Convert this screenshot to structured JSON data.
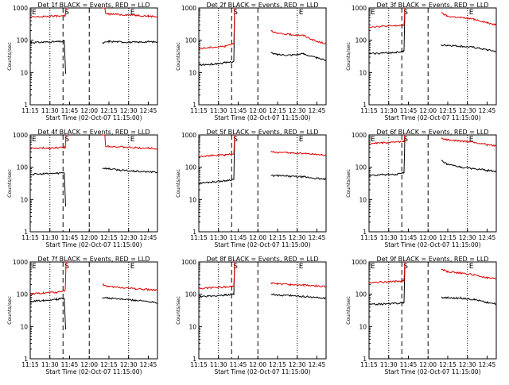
{
  "figure": {
    "time_label_prefix": "Start Time",
    "start_time": "02-Oct-07 11:15:00",
    "xlabel": "Start Time (02-Oct-07 11:15:00)",
    "ylabel": "Counts/sec"
  },
  "colors": {
    "events": "#000000",
    "lld": "#dd0000",
    "axes": "#000000"
  },
  "chart_data": [
    {
      "type": "line",
      "title": "Det 1f BLACK = Events, RED = LLD",
      "x_ticks": [
        "11:15",
        "11:30",
        "11:45",
        "12:00",
        "12:15",
        "12:30",
        "12:45"
      ],
      "y_ticks": [
        "1",
        "10",
        "100",
        "1000"
      ],
      "ylim": [
        1,
        1000
      ],
      "yscale": "log",
      "markers": {
        "start_left": "E",
        "S": "S",
        "E": "E"
      },
      "series": [
        {
          "name": "Events",
          "x_minutes": [
            0,
            10,
            20,
            26,
            27,
            30,
            40,
            48,
            55,
            60,
            70,
            80,
            90,
            97
          ],
          "values": [
            85,
            87,
            90,
            92,
            9,
            null,
            null,
            null,
            80,
            92,
            88,
            86,
            90,
            88
          ]
        },
        {
          "name": "LLD",
          "x_minutes": [
            0,
            10,
            20,
            26,
            28,
            30,
            40,
            48,
            55,
            60,
            70,
            80,
            90,
            97
          ],
          "values": [
            520,
            540,
            560,
            580,
            1000,
            null,
            null,
            null,
            1000,
            650,
            620,
            600,
            560,
            540
          ]
        }
      ]
    },
    {
      "type": "line",
      "title": "Det 2f BLACK = Events, RED = LLD",
      "x_ticks": [
        "11:15",
        "11:30",
        "11:45",
        "12:00",
        "12:15",
        "12:30",
        "12:45"
      ],
      "y_ticks": [
        "1",
        "10",
        "100",
        "1000"
      ],
      "ylim": [
        1,
        1000
      ],
      "yscale": "log",
      "markers": {
        "start_left": "",
        "S": "S",
        "E": "E"
      },
      "series": [
        {
          "name": "Events",
          "x_minutes": [
            0,
            10,
            20,
            26,
            28,
            30,
            40,
            48,
            55,
            60,
            70,
            80,
            90,
            97
          ],
          "values": [
            17,
            18,
            20,
            22,
            1000,
            null,
            null,
            null,
            40,
            36,
            35,
            38,
            28,
            24
          ]
        },
        {
          "name": "LLD",
          "x_minutes": [
            0,
            10,
            20,
            26,
            28,
            30,
            40,
            48,
            55,
            60,
            70,
            80,
            90,
            97
          ],
          "values": [
            55,
            60,
            65,
            80,
            1000,
            null,
            null,
            null,
            200,
            160,
            150,
            140,
            90,
            80
          ]
        }
      ]
    },
    {
      "type": "line",
      "title": "Det 3f BLACK = Events, RED = LLD",
      "x_ticks": [
        "11:15",
        "11:30",
        "11:45",
        "12:00",
        "12:15",
        "12:30",
        "12:45"
      ],
      "y_ticks": [
        "1",
        "10",
        "100",
        "1000"
      ],
      "ylim": [
        1,
        1000
      ],
      "yscale": "log",
      "markers": {
        "start_left": "E",
        "S": "S",
        "E": "E"
      },
      "series": [
        {
          "name": "Events",
          "x_minutes": [
            0,
            10,
            20,
            26,
            28,
            30,
            40,
            48,
            55,
            60,
            70,
            80,
            90,
            97
          ],
          "values": [
            38,
            40,
            42,
            45,
            1000,
            null,
            null,
            null,
            70,
            70,
            65,
            60,
            50,
            45
          ]
        },
        {
          "name": "LLD",
          "x_minutes": [
            0,
            10,
            20,
            26,
            28,
            30,
            40,
            48,
            55,
            60,
            70,
            80,
            90,
            97
          ],
          "values": [
            260,
            270,
            280,
            290,
            1000,
            null,
            null,
            null,
            700,
            550,
            500,
            450,
            350,
            300
          ]
        }
      ]
    },
    {
      "type": "line",
      "title": "Det 4f BLACK = Events, RED = LLD",
      "x_ticks": [
        "11:15",
        "11:30",
        "11:45",
        "12:00",
        "12:15",
        "12:30",
        "12:45"
      ],
      "y_ticks": [
        "1",
        "10",
        "100",
        "1000"
      ],
      "ylim": [
        1,
        1000
      ],
      "yscale": "log",
      "markers": {
        "start_left": "E",
        "S": "S",
        "E": "E"
      },
      "series": [
        {
          "name": "Events",
          "x_minutes": [
            0,
            10,
            20,
            26,
            27,
            30,
            40,
            48,
            55,
            60,
            70,
            80,
            90,
            97
          ],
          "values": [
            60,
            62,
            65,
            68,
            6,
            null,
            null,
            null,
            95,
            90,
            80,
            75,
            72,
            70
          ]
        },
        {
          "name": "LLD",
          "x_minutes": [
            0,
            10,
            20,
            26,
            28,
            30,
            40,
            48,
            55,
            60,
            70,
            80,
            90,
            97
          ],
          "values": [
            380,
            390,
            400,
            410,
            1000,
            null,
            null,
            null,
            1000,
            450,
            420,
            400,
            390,
            380
          ]
        }
      ]
    },
    {
      "type": "line",
      "title": "Det 5f BLACK = Events, RED = LLD",
      "x_ticks": [
        "11:15",
        "11:30",
        "11:45",
        "12:00",
        "12:15",
        "12:30",
        "12:45"
      ],
      "y_ticks": [
        "1",
        "10",
        "100",
        "1000"
      ],
      "ylim": [
        1,
        1000
      ],
      "yscale": "log",
      "markers": {
        "start_left": "",
        "S": "S",
        "E": "E"
      },
      "series": [
        {
          "name": "Events",
          "x_minutes": [
            0,
            10,
            20,
            26,
            28,
            30,
            40,
            48,
            55,
            60,
            70,
            80,
            90,
            97
          ],
          "values": [
            32,
            35,
            38,
            42,
            1000,
            null,
            null,
            null,
            55,
            55,
            52,
            50,
            45,
            42
          ]
        },
        {
          "name": "LLD",
          "x_minutes": [
            0,
            10,
            20,
            26,
            28,
            30,
            40,
            48,
            55,
            60,
            70,
            80,
            90,
            97
          ],
          "values": [
            220,
            230,
            240,
            260,
            1000,
            null,
            null,
            null,
            300,
            290,
            280,
            270,
            250,
            240
          ]
        }
      ]
    },
    {
      "type": "line",
      "title": "Det 6f BLACK = Events, RED = LLD",
      "x_ticks": [
        "11:15",
        "11:30",
        "11:45",
        "12:00",
        "12:15",
        "12:30",
        "12:45"
      ],
      "y_ticks": [
        "1",
        "10",
        "100",
        "1000"
      ],
      "ylim": [
        1,
        1000
      ],
      "yscale": "log",
      "markers": {
        "start_left": "E",
        "S": "S",
        "E": "E"
      },
      "series": [
        {
          "name": "Events",
          "x_minutes": [
            0,
            10,
            20,
            26,
            28,
            30,
            40,
            48,
            55,
            60,
            70,
            80,
            90,
            97
          ],
          "values": [
            55,
            58,
            60,
            65,
            1000,
            null,
            null,
            null,
            160,
            120,
            100,
            90,
            80,
            75
          ]
        },
        {
          "name": "LLD",
          "x_minutes": [
            0,
            10,
            20,
            26,
            28,
            30,
            40,
            48,
            55,
            60,
            70,
            80,
            90,
            97
          ],
          "values": [
            550,
            570,
            600,
            620,
            1000,
            null,
            null,
            null,
            800,
            700,
            650,
            600,
            500,
            470
          ]
        }
      ]
    },
    {
      "type": "line",
      "title": "Det 7f BLACK = Events, RED = LLD",
      "x_ticks": [
        "11:15",
        "11:30",
        "11:45",
        "12:00",
        "12:15",
        "12:30",
        "12:45"
      ],
      "y_ticks": [
        "1",
        "10",
        "100",
        "1000"
      ],
      "ylim": [
        1,
        1000
      ],
      "yscale": "log",
      "markers": {
        "start_left": "E",
        "S": "S",
        "E": "E"
      },
      "series": [
        {
          "name": "Events",
          "x_minutes": [
            0,
            10,
            20,
            26,
            27,
            30,
            40,
            48,
            55,
            60,
            70,
            80,
            90,
            97
          ],
          "values": [
            60,
            65,
            70,
            75,
            8,
            null,
            null,
            null,
            80,
            75,
            70,
            65,
            60,
            55
          ]
        },
        {
          "name": "LLD",
          "x_minutes": [
            0,
            10,
            20,
            26,
            28,
            30,
            40,
            48,
            55,
            60,
            70,
            80,
            90,
            97
          ],
          "values": [
            100,
            110,
            115,
            130,
            1000,
            null,
            null,
            null,
            200,
            170,
            160,
            150,
            140,
            130
          ]
        }
      ]
    },
    {
      "type": "line",
      "title": "Det 8f BLACK = Events, RED = LLD",
      "x_ticks": [
        "11:15",
        "11:30",
        "11:45",
        "12:00",
        "12:15",
        "12:30",
        "12:45"
      ],
      "y_ticks": [
        "1",
        "10",
        "100",
        "1000"
      ],
      "ylim": [
        1,
        1000
      ],
      "yscale": "log",
      "markers": {
        "start_left": "",
        "S": "S",
        "E": "E"
      },
      "series": [
        {
          "name": "Events",
          "x_minutes": [
            0,
            10,
            20,
            26,
            28,
            30,
            40,
            48,
            55,
            60,
            70,
            80,
            90,
            97
          ],
          "values": [
            85,
            88,
            95,
            100,
            1000,
            null,
            null,
            null,
            100,
            95,
            90,
            85,
            80,
            75
          ]
        },
        {
          "name": "LLD",
          "x_minutes": [
            0,
            10,
            20,
            26,
            28,
            30,
            40,
            48,
            55,
            60,
            70,
            80,
            90,
            97
          ],
          "values": [
            150,
            160,
            170,
            180,
            1000,
            null,
            null,
            null,
            220,
            210,
            200,
            190,
            180,
            170
          ]
        }
      ]
    },
    {
      "type": "line",
      "title": "Det 9f BLACK = Events, RED = LLD",
      "x_ticks": [
        "11:15",
        "11:30",
        "11:45",
        "12:00",
        "12:15",
        "12:30",
        "12:45"
      ],
      "y_ticks": [
        "1",
        "10",
        "100",
        "1000"
      ],
      "ylim": [
        1,
        1000
      ],
      "yscale": "log",
      "markers": {
        "start_left": "E",
        "S": "S",
        "E": "E"
      },
      "series": [
        {
          "name": "Events",
          "x_minutes": [
            0,
            10,
            20,
            26,
            28,
            30,
            40,
            48,
            55,
            60,
            70,
            80,
            90,
            97
          ],
          "values": [
            48,
            50,
            52,
            55,
            1000,
            null,
            null,
            null,
            80,
            78,
            75,
            70,
            55,
            50
          ]
        },
        {
          "name": "LLD",
          "x_minutes": [
            0,
            10,
            20,
            26,
            28,
            30,
            40,
            48,
            55,
            60,
            70,
            80,
            90,
            97
          ],
          "values": [
            230,
            240,
            250,
            260,
            1000,
            null,
            null,
            null,
            600,
            500,
            450,
            400,
            320,
            300
          ]
        }
      ]
    }
  ]
}
